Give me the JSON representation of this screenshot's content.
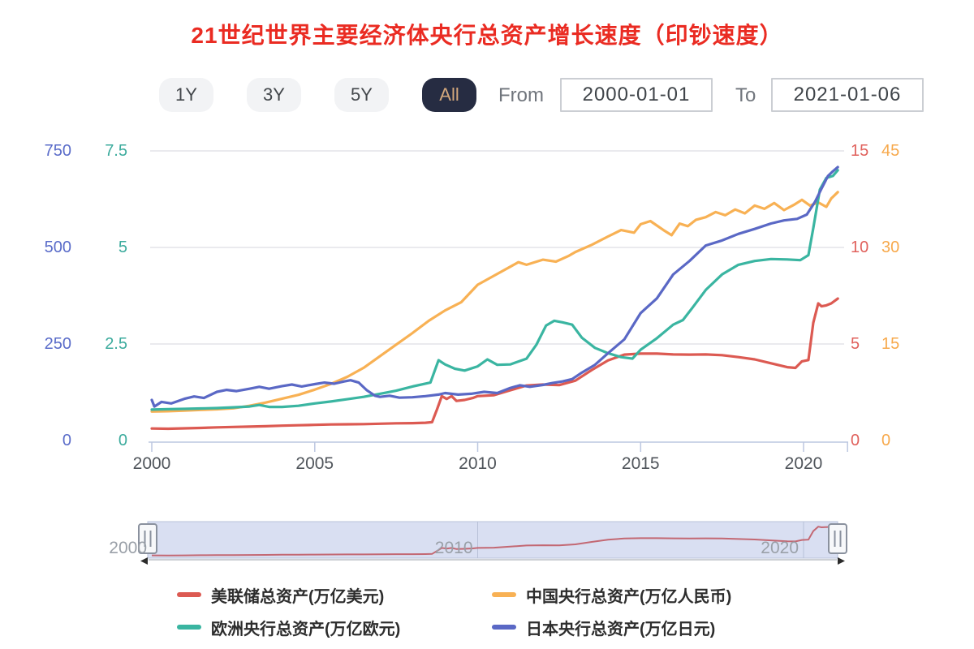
{
  "title": "21世纪世界主要经济体央行总资产增长速度（印钞速度）",
  "controls": {
    "range_buttons": [
      {
        "label": "1Y",
        "active": false
      },
      {
        "label": "3Y",
        "active": false
      },
      {
        "label": "5Y",
        "active": false
      },
      {
        "label": "All",
        "active": true
      }
    ],
    "from_label": "From",
    "from_value": "2000-01-01",
    "to_label": "To",
    "to_value": "2021-01-06"
  },
  "axes": {
    "left_outer": {
      "color": "#5a6cc9",
      "ticks": [
        "750",
        "500",
        "250",
        "0"
      ]
    },
    "left_inner": {
      "color": "#3cab9d",
      "ticks": [
        "7.5",
        "5",
        "2.5",
        "0"
      ]
    },
    "right_inner": {
      "color": "#e0615c",
      "ticks": [
        "15",
        "10",
        "5",
        "0"
      ]
    },
    "right_outer": {
      "color": "#f7a94c",
      "ticks": [
        "45",
        "30",
        "15",
        "0"
      ]
    },
    "x_labels": [
      "2000",
      "2005",
      "2010",
      "2015",
      "2020"
    ]
  },
  "chart_data": {
    "type": "line",
    "x_range": [
      2000,
      2021.05
    ],
    "x_tick_years": [
      2000,
      2005,
      2010,
      2015,
      2020
    ],
    "grid": true,
    "legend_position": "bottom",
    "series": [
      {
        "name": "美联储总资产(万亿美元)",
        "color": "#dc5a52",
        "axis": "right_inner",
        "ylim": [
          0,
          15
        ],
        "points": [
          [
            2000,
            0.62
          ],
          [
            2000.5,
            0.61
          ],
          [
            2001,
            0.63
          ],
          [
            2001.5,
            0.65
          ],
          [
            2002,
            0.68
          ],
          [
            2002.5,
            0.7
          ],
          [
            2003,
            0.72
          ],
          [
            2003.5,
            0.74
          ],
          [
            2004,
            0.77
          ],
          [
            2004.5,
            0.79
          ],
          [
            2005,
            0.81
          ],
          [
            2005.5,
            0.83
          ],
          [
            2006,
            0.84
          ],
          [
            2006.5,
            0.85
          ],
          [
            2007,
            0.87
          ],
          [
            2007.5,
            0.89
          ],
          [
            2008,
            0.9
          ],
          [
            2008.4,
            0.92
          ],
          [
            2008.6,
            0.95
          ],
          [
            2008.75,
            1.6
          ],
          [
            2008.9,
            2.3
          ],
          [
            2009.05,
            2.15
          ],
          [
            2009.2,
            2.3
          ],
          [
            2009.35,
            2.05
          ],
          [
            2009.6,
            2.1
          ],
          [
            2009.85,
            2.2
          ],
          [
            2010,
            2.3
          ],
          [
            2010.5,
            2.35
          ],
          [
            2011,
            2.6
          ],
          [
            2011.5,
            2.85
          ],
          [
            2012,
            2.9
          ],
          [
            2012.5,
            2.87
          ],
          [
            2013,
            3.1
          ],
          [
            2013.5,
            3.65
          ],
          [
            2014,
            4.15
          ],
          [
            2014.5,
            4.45
          ],
          [
            2015,
            4.5
          ],
          [
            2015.5,
            4.5
          ],
          [
            2016,
            4.46
          ],
          [
            2016.5,
            4.45
          ],
          [
            2017,
            4.46
          ],
          [
            2017.5,
            4.42
          ],
          [
            2018,
            4.32
          ],
          [
            2018.5,
            4.2
          ],
          [
            2019,
            4.0
          ],
          [
            2019.5,
            3.8
          ],
          [
            2019.75,
            3.76
          ],
          [
            2019.95,
            4.1
          ],
          [
            2020.15,
            4.17
          ],
          [
            2020.3,
            6.1
          ],
          [
            2020.45,
            7.1
          ],
          [
            2020.55,
            6.95
          ],
          [
            2020.7,
            7.0
          ],
          [
            2020.85,
            7.1
          ],
          [
            2021.05,
            7.35
          ]
        ]
      },
      {
        "name": "中国央行总资产(万亿人民币)",
        "color": "#f8b154",
        "axis": "right_outer",
        "ylim": [
          0,
          45
        ],
        "points": [
          [
            2000,
            4.5
          ],
          [
            2000.5,
            4.55
          ],
          [
            2001,
            4.65
          ],
          [
            2001.5,
            4.75
          ],
          [
            2002,
            4.85
          ],
          [
            2002.5,
            5.0
          ],
          [
            2003,
            5.4
          ],
          [
            2003.5,
            5.9
          ],
          [
            2004,
            6.5
          ],
          [
            2004.5,
            7.1
          ],
          [
            2005,
            7.9
          ],
          [
            2005.5,
            8.8
          ],
          [
            2006,
            9.9
          ],
          [
            2006.5,
            11.3
          ],
          [
            2007,
            13.1
          ],
          [
            2007.5,
            14.9
          ],
          [
            2008,
            16.7
          ],
          [
            2008.5,
            18.6
          ],
          [
            2009,
            20.2
          ],
          [
            2009.5,
            21.5
          ],
          [
            2010,
            24.2
          ],
          [
            2010.5,
            25.6
          ],
          [
            2011,
            27.0
          ],
          [
            2011.25,
            27.7
          ],
          [
            2011.5,
            27.3
          ],
          [
            2012,
            28.1
          ],
          [
            2012.4,
            27.8
          ],
          [
            2012.8,
            28.7
          ],
          [
            2013,
            29.3
          ],
          [
            2013.5,
            30.4
          ],
          [
            2014,
            31.7
          ],
          [
            2014.4,
            32.7
          ],
          [
            2014.8,
            32.3
          ],
          [
            2015,
            33.6
          ],
          [
            2015.3,
            34.1
          ],
          [
            2015.7,
            32.7
          ],
          [
            2015.95,
            31.9
          ],
          [
            2016.2,
            33.7
          ],
          [
            2016.45,
            33.3
          ],
          [
            2016.7,
            34.3
          ],
          [
            2017,
            34.7
          ],
          [
            2017.3,
            35.5
          ],
          [
            2017.6,
            35.0
          ],
          [
            2017.9,
            35.9
          ],
          [
            2018.2,
            35.3
          ],
          [
            2018.5,
            36.5
          ],
          [
            2018.8,
            36.0
          ],
          [
            2019.1,
            36.9
          ],
          [
            2019.4,
            35.8
          ],
          [
            2019.7,
            36.6
          ],
          [
            2019.95,
            37.4
          ],
          [
            2020.2,
            36.5
          ],
          [
            2020.45,
            37.0
          ],
          [
            2020.7,
            36.3
          ],
          [
            2020.85,
            37.6
          ],
          [
            2021.05,
            38.6
          ]
        ]
      },
      {
        "name": "欧洲央行总资产(万亿欧元)",
        "color": "#3ab5a1",
        "axis": "left_inner",
        "ylim": [
          0,
          7.5
        ],
        "points": [
          [
            2000,
            0.8
          ],
          [
            2000.5,
            0.81
          ],
          [
            2001,
            0.82
          ],
          [
            2001.5,
            0.83
          ],
          [
            2002,
            0.84
          ],
          [
            2002.5,
            0.86
          ],
          [
            2003,
            0.88
          ],
          [
            2003.3,
            0.92
          ],
          [
            2003.6,
            0.87
          ],
          [
            2004,
            0.87
          ],
          [
            2004.5,
            0.9
          ],
          [
            2005,
            0.96
          ],
          [
            2005.5,
            1.01
          ],
          [
            2006,
            1.07
          ],
          [
            2006.5,
            1.13
          ],
          [
            2007,
            1.21
          ],
          [
            2007.5,
            1.29
          ],
          [
            2008,
            1.4
          ],
          [
            2008.55,
            1.5
          ],
          [
            2008.8,
            2.08
          ],
          [
            2009,
            1.97
          ],
          [
            2009.3,
            1.86
          ],
          [
            2009.6,
            1.81
          ],
          [
            2010,
            1.92
          ],
          [
            2010.3,
            2.1
          ],
          [
            2010.6,
            1.96
          ],
          [
            2011,
            1.97
          ],
          [
            2011.5,
            2.12
          ],
          [
            2011.8,
            2.48
          ],
          [
            2012.1,
            2.98
          ],
          [
            2012.35,
            3.1
          ],
          [
            2012.6,
            3.06
          ],
          [
            2012.9,
            3.0
          ],
          [
            2013.2,
            2.66
          ],
          [
            2013.6,
            2.4
          ],
          [
            2014,
            2.26
          ],
          [
            2014.4,
            2.16
          ],
          [
            2014.75,
            2.12
          ],
          [
            2015,
            2.35
          ],
          [
            2015.5,
            2.65
          ],
          [
            2016,
            3.0
          ],
          [
            2016.3,
            3.12
          ],
          [
            2016.6,
            3.45
          ],
          [
            2017,
            3.9
          ],
          [
            2017.5,
            4.3
          ],
          [
            2018,
            4.55
          ],
          [
            2018.5,
            4.65
          ],
          [
            2019,
            4.7
          ],
          [
            2019.5,
            4.69
          ],
          [
            2019.9,
            4.67
          ],
          [
            2020.15,
            4.8
          ],
          [
            2020.3,
            5.5
          ],
          [
            2020.5,
            6.5
          ],
          [
            2020.7,
            6.8
          ],
          [
            2020.9,
            6.85
          ],
          [
            2021.05,
            7.0
          ]
        ]
      },
      {
        "name": "日本央行总资产(万亿日元)",
        "color": "#5a68c5",
        "axis": "left_outer",
        "ylim": [
          0,
          750
        ],
        "points": [
          [
            2000,
            105
          ],
          [
            2000.08,
            88
          ],
          [
            2000.3,
            100
          ],
          [
            2000.6,
            96
          ],
          [
            2001,
            108
          ],
          [
            2001.3,
            114
          ],
          [
            2001.6,
            110
          ],
          [
            2002,
            126
          ],
          [
            2002.3,
            131
          ],
          [
            2002.6,
            128
          ],
          [
            2003,
            134
          ],
          [
            2003.3,
            139
          ],
          [
            2003.6,
            134
          ],
          [
            2004,
            141
          ],
          [
            2004.3,
            145
          ],
          [
            2004.6,
            140
          ],
          [
            2005,
            146
          ],
          [
            2005.3,
            150
          ],
          [
            2005.6,
            147
          ],
          [
            2005.9,
            153
          ],
          [
            2006.1,
            156
          ],
          [
            2006.35,
            150
          ],
          [
            2006.6,
            130
          ],
          [
            2006.85,
            116
          ],
          [
            2007,
            113
          ],
          [
            2007.3,
            116
          ],
          [
            2007.6,
            111
          ],
          [
            2008,
            112
          ],
          [
            2008.4,
            115
          ],
          [
            2008.8,
            119
          ],
          [
            2009,
            123
          ],
          [
            2009.4,
            119
          ],
          [
            2009.8,
            121
          ],
          [
            2010.2,
            126
          ],
          [
            2010.6,
            123
          ],
          [
            2011,
            136
          ],
          [
            2011.3,
            143
          ],
          [
            2011.6,
            139
          ],
          [
            2012,
            144
          ],
          [
            2012.3,
            149
          ],
          [
            2012.6,
            153
          ],
          [
            2012.9,
            159
          ],
          [
            2013.2,
            176
          ],
          [
            2013.6,
            196
          ],
          [
            2014,
            226
          ],
          [
            2014.5,
            262
          ],
          [
            2015,
            330
          ],
          [
            2015.5,
            368
          ],
          [
            2016,
            430
          ],
          [
            2016.5,
            465
          ],
          [
            2017,
            505
          ],
          [
            2017.5,
            518
          ],
          [
            2018,
            535
          ],
          [
            2018.5,
            548
          ],
          [
            2019,
            562
          ],
          [
            2019.4,
            570
          ],
          [
            2019.8,
            574
          ],
          [
            2020.1,
            585
          ],
          [
            2020.35,
            618
          ],
          [
            2020.55,
            652
          ],
          [
            2020.75,
            685
          ],
          [
            2020.9,
            697
          ],
          [
            2021.05,
            708
          ]
        ]
      }
    ]
  },
  "navigator": {
    "labels": [
      {
        "text": "2000",
        "year": 2000
      },
      {
        "text": "2010",
        "year": 2010
      },
      {
        "text": "2020",
        "year": 2020
      }
    ],
    "series_index": 0,
    "line_color": "#c2616c",
    "fill": "#d9dff2",
    "border": "#b7c0da"
  },
  "colors": {
    "title": "#ea2b22",
    "grid": "#e3e4e9",
    "axis_line": "#bcc7e0",
    "x_label": "#50555b",
    "nav_label": "#9aa0a8",
    "nav_axis": "#cdd0d5",
    "nav_arrow": "#2b2b2b",
    "handle_fill": "#f7f8fa",
    "handle_border": "#8a919e",
    "button_bg": "#f2f3f5",
    "button_text": "#43474b",
    "button_active_bg": "#262c42",
    "button_active_text": "#d4a87c"
  }
}
